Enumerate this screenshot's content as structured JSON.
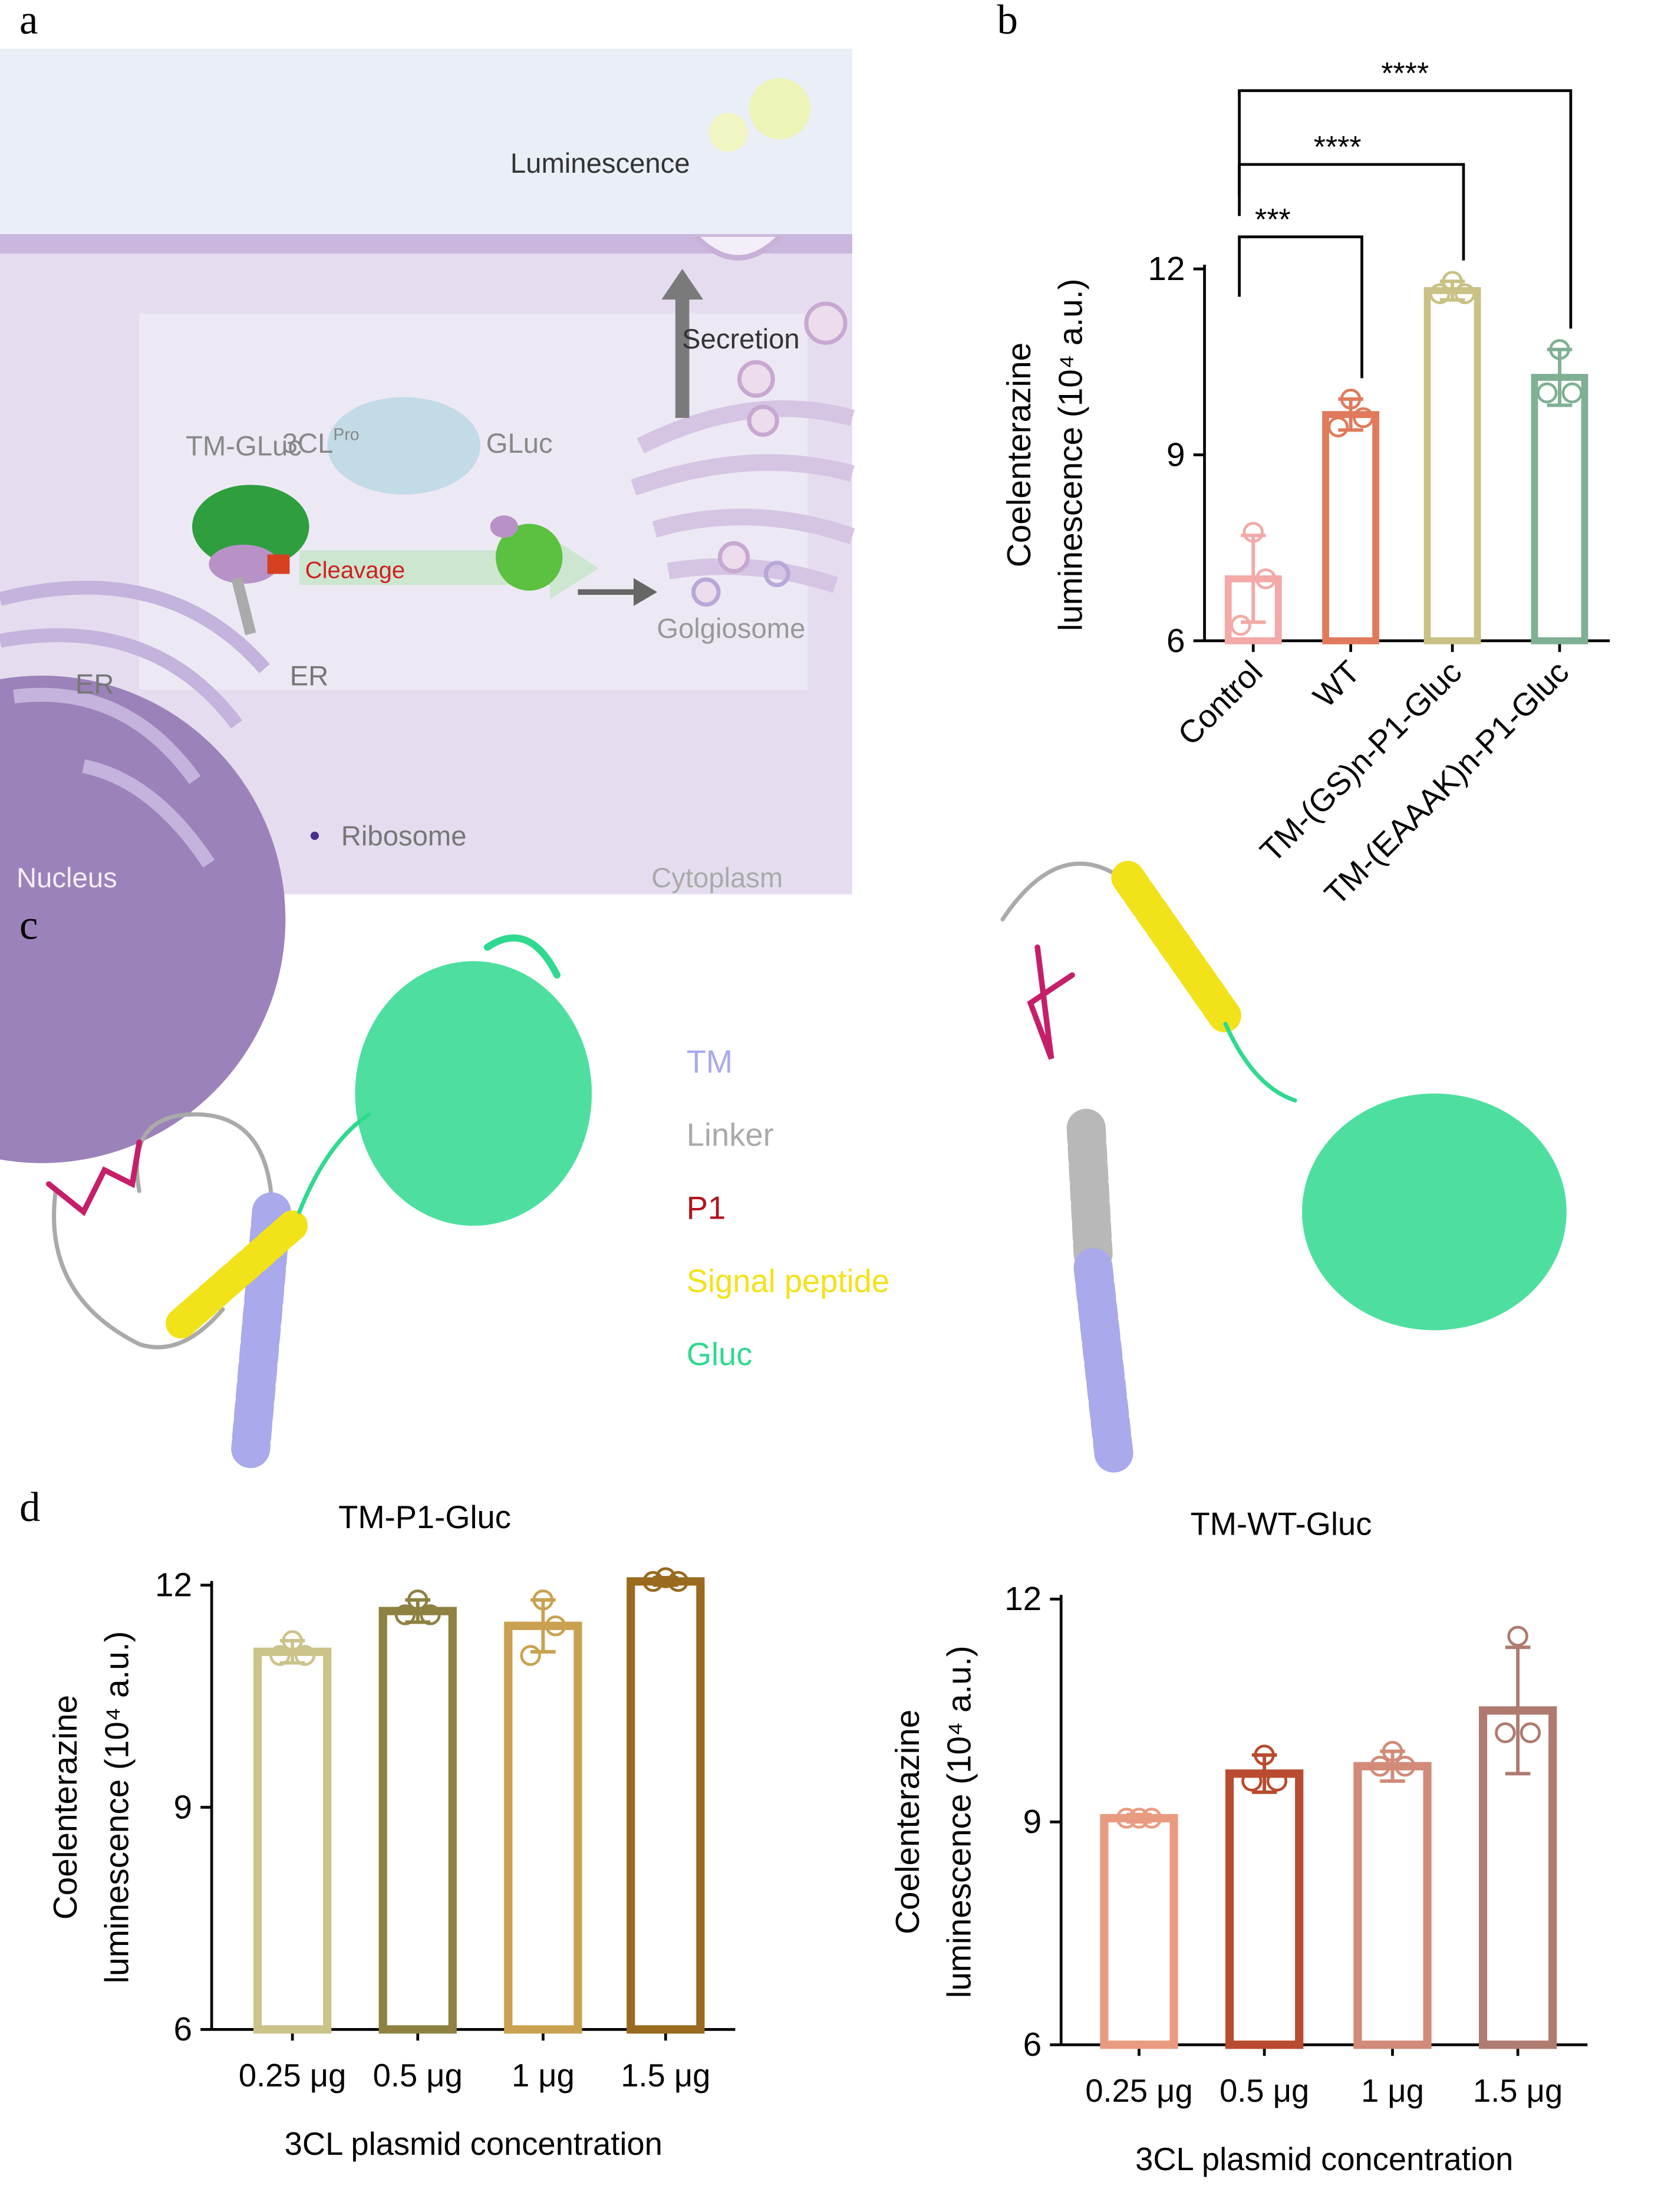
{
  "panel_labels": [
    "a",
    "b",
    "c",
    "d"
  ],
  "diagram_a": {
    "luminescence": "Luminescence",
    "secretion": "Secretion",
    "protease": "3CL",
    "protease_sup": "Pro",
    "tm_gluc": "TM-GLuc",
    "gluc": "GLuc",
    "cleavage": "Cleavage",
    "golgiosome": "Golgiosome",
    "er_left": "ER",
    "er_right": "ER",
    "ribosome": "Ribosome",
    "nucleus": "Nucleus",
    "cytoplasm": "Cytoplasm"
  },
  "diagram_c": {
    "legend": [
      {
        "label": "TM",
        "color": "#a9a9ec"
      },
      {
        "label": "Linker",
        "color": "#aaaaaa"
      },
      {
        "label": "P1",
        "color": "#b0141c"
      },
      {
        "label": "Signal peptide",
        "color": "#f2e21a"
      },
      {
        "label": "Gluc",
        "color": "#2fd98f"
      }
    ]
  },
  "chart_data": [
    {
      "type": "bar",
      "categories": [
        "Control",
        "WT",
        "TM-(GS)n-P1-Gluc",
        "TM-(EAAAK)n-P1-Gluc"
      ],
      "values": [
        7.0,
        9.65,
        11.65,
        10.25
      ],
      "errors": [
        0.7,
        0.25,
        0.15,
        0.45
      ],
      "points": [
        [
          7.75,
          7.0,
          6.25
        ],
        [
          9.9,
          9.6,
          9.45
        ],
        [
          11.8,
          11.6,
          11.6
        ],
        [
          10.7,
          10.0,
          10.0
        ]
      ],
      "colors": [
        "#f2a9a7",
        "#e07a5c",
        "#c9c185",
        "#7fb094"
      ],
      "y_label": [
        "Coelenterazine",
        "luminescence (10⁴ a.u.)"
      ],
      "ylim": [
        6,
        12
      ],
      "yticks": [
        6,
        9,
        12
      ],
      "annotations": [
        "***",
        "****",
        "****"
      ]
    },
    {
      "type": "bar",
      "title": "TM-P1-Gluc",
      "categories": [
        "0.25 μg",
        "0.5 μg",
        "1 μg",
        "1.5 μg"
      ],
      "values": [
        11.1,
        11.65,
        11.45,
        12.05
      ],
      "errors": [
        0.15,
        0.15,
        0.35,
        0.05
      ],
      "points": [
        [
          11.25,
          11.05,
          11.05
        ],
        [
          11.8,
          11.6,
          11.6
        ],
        [
          11.8,
          11.45,
          11.05
        ],
        [
          12.1,
          12.05,
          12.05
        ]
      ],
      "colors": [
        "#cbc389",
        "#8e8141",
        "#c9a150",
        "#9a6a1f"
      ],
      "x_label": "3CL plasmid concentration",
      "y_label": [
        "Coelenterazine",
        "luminescence (10⁴ a.u.)"
      ],
      "ylim": [
        6,
        12
      ],
      "yticks": [
        6,
        9,
        12
      ]
    },
    {
      "type": "bar",
      "title": "TM-WT-Gluc",
      "categories": [
        "0.25 μg",
        "0.5 μg",
        "1 μg",
        "1.5 μg"
      ],
      "values": [
        9.05,
        9.65,
        9.75,
        10.5
      ],
      "errors": [
        0.05,
        0.25,
        0.2,
        0.85
      ],
      "points": [
        [
          9.05,
          9.05,
          9.05
        ],
        [
          9.9,
          9.55,
          9.55
        ],
        [
          9.95,
          9.75,
          9.75
        ],
        [
          11.5,
          10.2,
          10.2
        ]
      ],
      "colors": [
        "#e99b81",
        "#b84b30",
        "#d18b78",
        "#af7b70"
      ],
      "x_label": "3CL plasmid concentration",
      "y_label": [
        "Coelenterazine",
        "luminescence (10⁴ a.u.)"
      ],
      "ylim": [
        6,
        12
      ],
      "yticks": [
        6,
        9,
        12
      ]
    }
  ]
}
